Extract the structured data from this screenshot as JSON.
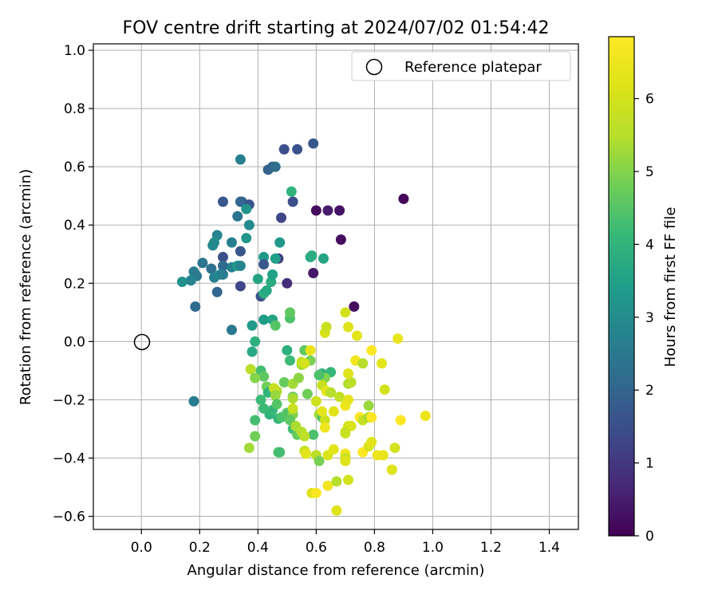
{
  "chart_data": {
    "type": "scatter",
    "title": "FOV centre drift starting at 2024/07/02 01:54:42",
    "xlabel": "Angular distance from reference (arcmin)",
    "ylabel": "Rotation from reference (arcmin)",
    "xlim": [
      -0.165,
      1.5
    ],
    "ylim": [
      -0.645,
      1.022
    ],
    "xticks": [
      "0.0",
      "0.2",
      "0.4",
      "0.6",
      "0.8",
      "1.0",
      "1.2",
      "1.4"
    ],
    "yticks": [
      "−0.6",
      "−0.4",
      "−0.2",
      "0.0",
      "0.2",
      "0.4",
      "0.6",
      "0.8",
      "1.0"
    ],
    "grid": true,
    "legend": {
      "position": "top-right",
      "label": "Reference platepar"
    },
    "reference_point": {
      "x": 0.0,
      "y": 0.0
    },
    "colorbar": {
      "label": "Hours from first FF file",
      "range": [
        0,
        6.85
      ],
      "ticks": [
        "0",
        "1",
        "2",
        "3",
        "4",
        "5",
        "6"
      ],
      "colormap": "viridis"
    },
    "points": [
      [
        0.9,
        0.49,
        0.1
      ],
      [
        0.6,
        0.45,
        0.2
      ],
      [
        0.64,
        0.45,
        0.5
      ],
      [
        0.68,
        0.45,
        0.3
      ],
      [
        0.685,
        0.35,
        0.2
      ],
      [
        0.59,
        0.235,
        0.4
      ],
      [
        0.73,
        0.12,
        0.2
      ],
      [
        0.5,
        0.2,
        0.8
      ],
      [
        0.47,
        0.285,
        1.1
      ],
      [
        0.48,
        0.425,
        1.3
      ],
      [
        0.52,
        0.48,
        1.5
      ],
      [
        0.49,
        0.66,
        1.5
      ],
      [
        0.535,
        0.66,
        1.6
      ],
      [
        0.59,
        0.68,
        1.7
      ],
      [
        0.435,
        0.59,
        1.9
      ],
      [
        0.45,
        0.6,
        2.0
      ],
      [
        0.46,
        0.6,
        2.2
      ],
      [
        0.34,
        0.625,
        2.7
      ],
      [
        0.34,
        0.48,
        2.1
      ],
      [
        0.345,
        0.48,
        2.0
      ],
      [
        0.37,
        0.47,
        1.6
      ],
      [
        0.28,
        0.48,
        1.7
      ],
      [
        0.36,
        0.455,
        3.2
      ],
      [
        0.33,
        0.43,
        2.4
      ],
      [
        0.37,
        0.4,
        2.9
      ],
      [
        0.31,
        0.34,
        2.7
      ],
      [
        0.34,
        0.31,
        1.7
      ],
      [
        0.36,
        0.355,
        3.2
      ],
      [
        0.26,
        0.365,
        2.8
      ],
      [
        0.25,
        0.34,
        3.0
      ],
      [
        0.245,
        0.33,
        2.9
      ],
      [
        0.28,
        0.29,
        1.5
      ],
      [
        0.21,
        0.27,
        2.4
      ],
      [
        0.28,
        0.26,
        2.1
      ],
      [
        0.31,
        0.255,
        2.7
      ],
      [
        0.33,
        0.26,
        3.4
      ],
      [
        0.34,
        0.26,
        2.8
      ],
      [
        0.18,
        0.24,
        2.6
      ],
      [
        0.19,
        0.225,
        2.5
      ],
      [
        0.24,
        0.25,
        2.3
      ],
      [
        0.25,
        0.22,
        2.7
      ],
      [
        0.27,
        0.23,
        2.9
      ],
      [
        0.14,
        0.205,
        3.1
      ],
      [
        0.17,
        0.21,
        2.8
      ],
      [
        0.28,
        0.23,
        2.6
      ],
      [
        0.34,
        0.19,
        1.3
      ],
      [
        0.26,
        0.17,
        2.0
      ],
      [
        0.185,
        0.12,
        2.1
      ],
      [
        0.31,
        0.04,
        2.5
      ],
      [
        0.18,
        -0.205,
        2.6
      ],
      [
        0.42,
        0.29,
        3.3
      ],
      [
        0.42,
        0.265,
        1.7
      ],
      [
        0.46,
        0.285,
        3.5
      ],
      [
        0.4,
        0.215,
        3.6
      ],
      [
        0.445,
        0.205,
        3.8
      ],
      [
        0.45,
        0.23,
        3.5
      ],
      [
        0.41,
        0.155,
        1.6
      ],
      [
        0.42,
        0.165,
        3.9
      ],
      [
        0.43,
        0.175,
        3.7
      ],
      [
        0.475,
        0.34,
        3.3
      ],
      [
        0.515,
        0.515,
        4.0
      ],
      [
        0.58,
        0.29,
        3.7
      ],
      [
        0.585,
        0.295,
        3.8
      ],
      [
        0.625,
        0.285,
        3.6
      ],
      [
        0.42,
        0.075,
        3.4
      ],
      [
        0.45,
        0.075,
        3.6
      ],
      [
        0.38,
        0.055,
        3.3
      ],
      [
        0.46,
        0.055,
        4.5
      ],
      [
        0.51,
        0.08,
        4.4
      ],
      [
        0.51,
        0.1,
        4.6
      ],
      [
        0.39,
        0.0,
        3.9
      ],
      [
        0.38,
        -0.035,
        3.7
      ],
      [
        0.5,
        -0.03,
        3.9
      ],
      [
        0.51,
        -0.065,
        4.2
      ],
      [
        0.56,
        -0.03,
        4.6
      ],
      [
        0.55,
        -0.08,
        5.3
      ],
      [
        0.58,
        -0.065,
        4.9
      ],
      [
        0.62,
        -0.11,
        4.0
      ],
      [
        0.65,
        -0.105,
        4.1
      ],
      [
        0.63,
        -0.125,
        5.0
      ],
      [
        0.61,
        -0.115,
        4.4
      ],
      [
        0.41,
        -0.1,
        4.3
      ],
      [
        0.42,
        -0.12,
        4.6
      ],
      [
        0.375,
        -0.095,
        5.6
      ],
      [
        0.39,
        -0.125,
        5.0
      ],
      [
        0.43,
        -0.155,
        4.8
      ],
      [
        0.435,
        -0.175,
        4.0
      ],
      [
        0.41,
        -0.2,
        4.2
      ],
      [
        0.465,
        -0.17,
        5.4
      ],
      [
        0.455,
        -0.16,
        5.8
      ],
      [
        0.46,
        -0.185,
        5.2
      ],
      [
        0.49,
        -0.14,
        4.7
      ],
      [
        0.52,
        -0.145,
        5.3
      ],
      [
        0.54,
        -0.125,
        5.1
      ],
      [
        0.52,
        -0.19,
        4.6
      ],
      [
        0.52,
        -0.195,
        5.4
      ],
      [
        0.57,
        -0.18,
        4.8
      ],
      [
        0.62,
        -0.15,
        5.8
      ],
      [
        0.635,
        -0.17,
        6.3
      ],
      [
        0.65,
        -0.175,
        5.5
      ],
      [
        0.6,
        -0.205,
        5.9
      ],
      [
        0.68,
        -0.19,
        5.7
      ],
      [
        0.71,
        -0.145,
        5.4
      ],
      [
        0.72,
        -0.14,
        5.6
      ],
      [
        0.71,
        -0.11,
        6.2
      ],
      [
        0.735,
        -0.065,
        6.6
      ],
      [
        0.76,
        -0.075,
        5.5
      ],
      [
        0.79,
        -0.03,
        6.8
      ],
      [
        0.825,
        -0.075,
        6.3
      ],
      [
        0.835,
        -0.165,
        6.0
      ],
      [
        0.88,
        0.01,
        6.4
      ],
      [
        0.7,
        0.1,
        6.0
      ],
      [
        0.71,
        0.05,
        6.2
      ],
      [
        0.74,
        0.02,
        6.3
      ],
      [
        0.63,
        0.03,
        6.1
      ],
      [
        0.635,
        0.05,
        5.8
      ],
      [
        0.58,
        -0.03,
        6.4
      ],
      [
        0.55,
        -0.07,
        5.7
      ],
      [
        0.56,
        -0.075,
        6.0
      ],
      [
        0.44,
        -0.25,
        4.0
      ],
      [
        0.42,
        -0.23,
        4.2
      ],
      [
        0.45,
        -0.235,
        4.1
      ],
      [
        0.465,
        -0.215,
        4.5
      ],
      [
        0.47,
        -0.265,
        4.0
      ],
      [
        0.39,
        -0.27,
        4.3
      ],
      [
        0.48,
        -0.26,
        4.4
      ],
      [
        0.5,
        -0.245,
        4.5
      ],
      [
        0.52,
        -0.25,
        5.0
      ],
      [
        0.51,
        -0.27,
        4.6
      ],
      [
        0.52,
        -0.23,
        5.8
      ],
      [
        0.52,
        -0.3,
        4.3
      ],
      [
        0.535,
        -0.32,
        4.7
      ],
      [
        0.53,
        -0.29,
        5.4
      ],
      [
        0.55,
        -0.31,
        5.5
      ],
      [
        0.59,
        -0.32,
        4.4
      ],
      [
        0.61,
        -0.25,
        5.3
      ],
      [
        0.62,
        -0.26,
        4.5
      ],
      [
        0.63,
        -0.27,
        5.9
      ],
      [
        0.63,
        -0.295,
        6.5
      ],
      [
        0.62,
        -0.24,
        6.3
      ],
      [
        0.66,
        -0.24,
        6.2
      ],
      [
        0.7,
        -0.22,
        6.5
      ],
      [
        0.71,
        -0.2,
        6.4
      ],
      [
        0.7,
        -0.31,
        6.2
      ],
      [
        0.71,
        -0.29,
        6.0
      ],
      [
        0.72,
        -0.29,
        6.1
      ],
      [
        0.7,
        -0.315,
        5.8
      ],
      [
        0.75,
        -0.26,
        6.9
      ],
      [
        0.76,
        -0.27,
        5.8
      ],
      [
        0.78,
        -0.26,
        5.4
      ],
      [
        0.79,
        -0.26,
        6.9
      ],
      [
        0.78,
        -0.22,
        5.2
      ],
      [
        0.89,
        -0.27,
        6.9
      ],
      [
        0.975,
        -0.255,
        6.5
      ],
      [
        0.39,
        -0.325,
        4.8
      ],
      [
        0.37,
        -0.365,
        5.3
      ],
      [
        0.47,
        -0.38,
        4.4
      ],
      [
        0.475,
        -0.38,
        4.3
      ],
      [
        0.56,
        -0.375,
        5.8
      ],
      [
        0.565,
        -0.385,
        6.3
      ],
      [
        0.56,
        -0.325,
        5.6
      ],
      [
        0.6,
        -0.39,
        5.6
      ],
      [
        0.61,
        -0.41,
        4.9
      ],
      [
        0.64,
        -0.39,
        6.1
      ],
      [
        0.66,
        -0.37,
        6.3
      ],
      [
        0.7,
        -0.385,
        6.6
      ],
      [
        0.7,
        -0.4,
        5.8
      ],
      [
        0.7,
        -0.41,
        6.2
      ],
      [
        0.76,
        -0.38,
        6.8
      ],
      [
        0.78,
        -0.36,
        6.1
      ],
      [
        0.79,
        -0.345,
        6.3
      ],
      [
        0.81,
        -0.39,
        6.5
      ],
      [
        0.83,
        -0.39,
        6.4
      ],
      [
        0.86,
        -0.44,
        6.2
      ],
      [
        0.87,
        -0.365,
        6.0
      ],
      [
        0.585,
        -0.52,
        6.2
      ],
      [
        0.6,
        -0.52,
        6.8
      ],
      [
        0.64,
        -0.495,
        6.6
      ],
      [
        0.67,
        -0.48,
        5.5
      ],
      [
        0.71,
        -0.475,
        6.0
      ],
      [
        0.67,
        -0.58,
        6.2
      ]
    ]
  }
}
